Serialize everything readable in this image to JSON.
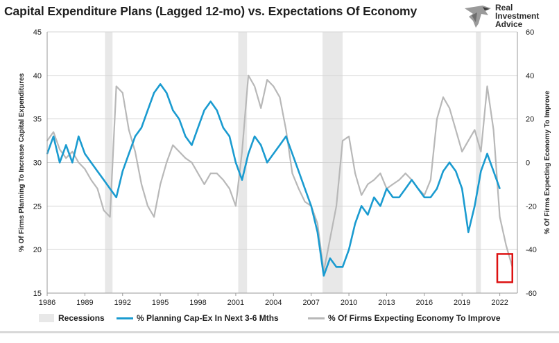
{
  "chart_data": {
    "type": "line",
    "title": "Capital Expenditure Plans (Lagged 12-mo) vs. Expectations Of Economy",
    "xlabel": "",
    "x_ticks": [
      "1986",
      "1989",
      "1992",
      "1995",
      "1998",
      "2001",
      "2004",
      "2007",
      "2010",
      "2013",
      "2016",
      "2019",
      "2022"
    ],
    "xlim": [
      1986,
      2023.4
    ],
    "y_left": {
      "label": "% Of Firms Planning To Increase Capital Expenditures",
      "lim": [
        15,
        45
      ],
      "ticks": [
        15,
        20,
        25,
        30,
        35,
        40,
        45
      ]
    },
    "y_right": {
      "label": "% Of Firms Expecting Economy To Improve",
      "lim": [
        -60,
        60
      ],
      "ticks": [
        -60,
        -40,
        -20,
        0,
        20,
        40,
        60
      ]
    },
    "recessions": [
      [
        1990.6,
        1991.2
      ],
      [
        2001.2,
        2001.9
      ],
      [
        2007.9,
        2009.5
      ],
      [
        2020.1,
        2020.5
      ]
    ],
    "legend": {
      "recessions": "Recessions",
      "capex": "% Planning Cap-Ex In Next 3-6 Mths",
      "economy": "% Of Firms Expecting Economy To Improve"
    },
    "series": [
      {
        "name": "% Planning Cap-Ex In Next 3-6 Mths",
        "axis": "left",
        "color": "#1a9bd0",
        "x": [
          1986,
          1986.5,
          1987,
          1987.5,
          1988,
          1988.5,
          1989,
          1989.5,
          1990,
          1990.5,
          1991,
          1991.5,
          1992,
          1992.5,
          1993,
          1993.5,
          1994,
          1994.5,
          1995,
          1995.5,
          1996,
          1996.5,
          1997,
          1997.5,
          1998,
          1998.5,
          1999,
          1999.5,
          2000,
          2000.5,
          2001,
          2001.5,
          2002,
          2002.5,
          2003,
          2003.5,
          2004,
          2004.5,
          2005,
          2005.5,
          2006,
          2006.5,
          2007,
          2007.5,
          2008,
          2008.5,
          2009,
          2009.5,
          2010,
          2010.5,
          2011,
          2011.5,
          2012,
          2012.5,
          2013,
          2013.5,
          2014,
          2014.5,
          2015,
          2015.5,
          2016,
          2016.5,
          2017,
          2017.5,
          2018,
          2018.5,
          2019,
          2019.5,
          2020,
          2020.5,
          2021,
          2021.5,
          2022
        ],
        "values": [
          31,
          33,
          30,
          32,
          30,
          33,
          31,
          30,
          29,
          28,
          27,
          26,
          29,
          31,
          33,
          34,
          36,
          38,
          39,
          38,
          36,
          35,
          33,
          32,
          34,
          36,
          37,
          36,
          34,
          33,
          30,
          28,
          31,
          33,
          32,
          30,
          31,
          32,
          33,
          31,
          29,
          27,
          25,
          22,
          17,
          19,
          18,
          18,
          20,
          23,
          25,
          24,
          26,
          25,
          27,
          26,
          26,
          27,
          28,
          27,
          26,
          26,
          27,
          29,
          30,
          29,
          27,
          22,
          25,
          29,
          31,
          29,
          27
        ]
      },
      {
        "name": "% Of Firms Expecting Economy To Improve",
        "axis": "right",
        "color": "#b8b8b8",
        "x": [
          1986,
          1986.5,
          1987,
          1987.5,
          1988,
          1988.5,
          1989,
          1989.5,
          1990,
          1990.5,
          1991,
          1991.5,
          1992,
          1992.5,
          1993,
          1993.5,
          1994,
          1994.5,
          1995,
          1995.5,
          1996,
          1996.5,
          1997,
          1997.5,
          1998,
          1998.5,
          1999,
          1999.5,
          2000,
          2000.5,
          2001,
          2001.5,
          2002,
          2002.5,
          2003,
          2003.5,
          2004,
          2004.5,
          2005,
          2005.5,
          2006,
          2006.5,
          2007,
          2007.5,
          2008,
          2008.5,
          2009,
          2009.5,
          2010,
          2010.5,
          2011,
          2011.5,
          2012,
          2012.5,
          2013,
          2013.5,
          2014,
          2014.5,
          2015,
          2015.5,
          2016,
          2016.5,
          2017,
          2017.5,
          2018,
          2018.5,
          2019,
          2019.5,
          2020,
          2020.5,
          2021,
          2021.5,
          2022,
          2022.5,
          2023
        ],
        "values": [
          10,
          14,
          6,
          2,
          5,
          0,
          -3,
          -8,
          -12,
          -22,
          -25,
          35,
          32,
          15,
          5,
          -10,
          -20,
          -25,
          -10,
          0,
          8,
          5,
          2,
          0,
          -5,
          -10,
          -5,
          -5,
          -8,
          -12,
          -20,
          5,
          40,
          35,
          25,
          38,
          35,
          30,
          15,
          -5,
          -12,
          -18,
          -20,
          -28,
          -50,
          -35,
          -20,
          10,
          12,
          -5,
          -15,
          -10,
          -8,
          -5,
          -12,
          -10,
          -8,
          -5,
          -8,
          -12,
          -15,
          -8,
          20,
          30,
          25,
          15,
          5,
          10,
          15,
          5,
          35,
          15,
          -25,
          -38,
          -48
        ]
      }
    ]
  },
  "logo": {
    "line1": "Real",
    "line2": "Investment",
    "line3": "Advice"
  }
}
